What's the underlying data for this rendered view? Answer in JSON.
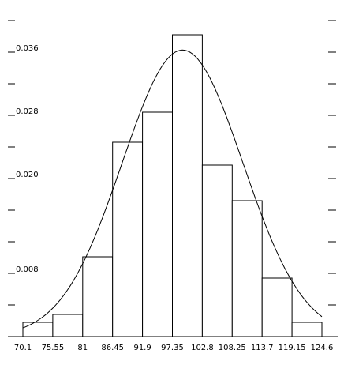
{
  "chart_data": {
    "type": "bar",
    "title": "",
    "xlabel": "",
    "ylabel": "",
    "bin_edges": [
      70.1,
      75.55,
      81,
      86.45,
      91.9,
      97.35,
      102.8,
      108.25,
      113.7,
      119.15,
      124.6
    ],
    "x_tick_labels": [
      "70.1",
      "75.55",
      "81",
      "86.45",
      "91.9",
      "97.35",
      "102.8",
      "108.25",
      "113.7",
      "119.15",
      "124.6"
    ],
    "values": [
      0.0018,
      0.0028,
      0.0101,
      0.0246,
      0.0284,
      0.0382,
      0.0217,
      0.0172,
      0.0074,
      0.0018
    ],
    "y_tick_labels": [
      {
        "value": 0.008,
        "label": "0.008"
      },
      {
        "value": 0.02,
        "label": "0.020"
      },
      {
        "value": 0.028,
        "label": "0.028"
      },
      {
        "value": 0.036,
        "label": "0.036"
      }
    ],
    "y_minor_ticks": [
      0.004,
      0.012,
      0.016,
      0.024,
      0.032,
      0.04
    ],
    "xlim": [
      70.1,
      124.6
    ],
    "ylim": [
      0,
      0.0425
    ],
    "grid": false,
    "overlay": {
      "type": "normal_density",
      "mean": 99.2,
      "sd": 11
    }
  }
}
